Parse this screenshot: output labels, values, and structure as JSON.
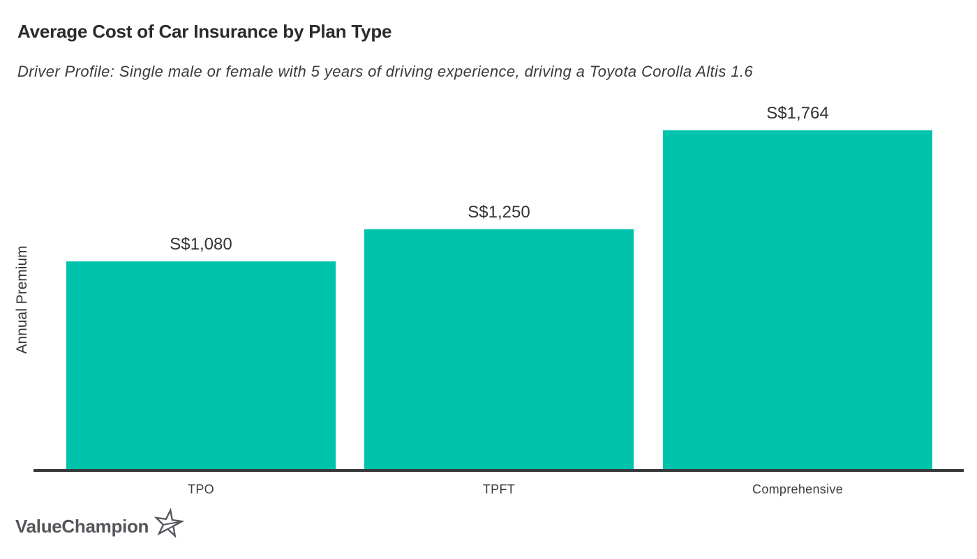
{
  "header": {
    "title": "Average Cost of Car Insurance by Plan Type",
    "subtitle": "Driver Profile: Single male or female with 5 years of driving experience, driving a Toyota Corolla Altis 1.6"
  },
  "chart_data": {
    "type": "bar",
    "title": "Average Cost of Car Insurance by Plan Type",
    "subtitle": "Driver Profile: Single male or female with 5 years of driving experience, driving a Toyota Corolla Altis 1.6",
    "categories": [
      "TPO",
      "TPFT",
      "Comprehensive"
    ],
    "values": [
      1080,
      1250,
      1764
    ],
    "value_labels": [
      "S$1,080",
      "S$1,250",
      "S$1,764"
    ],
    "currency": "S$",
    "xlabel": "",
    "ylabel": "Annual Premium",
    "ylim": [
      0,
      1800
    ],
    "grid": false,
    "legend": false,
    "bar_color": "#00C3AC",
    "axis_color": "#37383C",
    "text_color": "#333333"
  },
  "footer": {
    "logo_text": "ValueChampion",
    "logo_icon": "star-outline-icon",
    "logo_color": "#54555A"
  }
}
